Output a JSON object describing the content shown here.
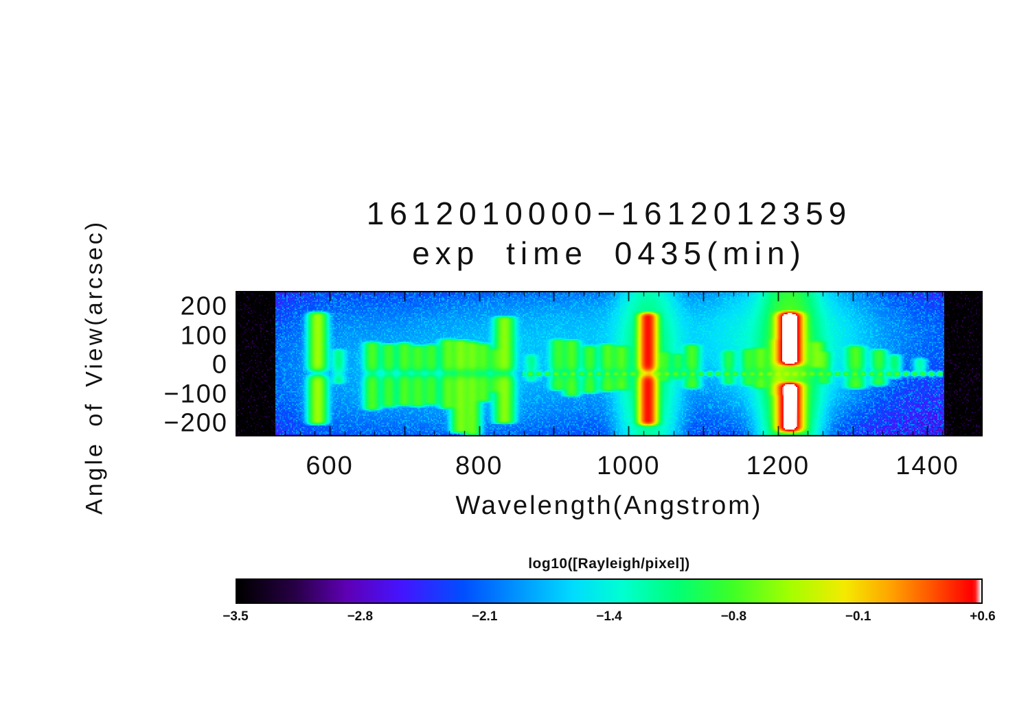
{
  "chart_data": {
    "type": "heatmap",
    "title": "1612010000−1612012359",
    "subtitle": "exp time 0435(min)",
    "xlabel": "Wavelength(Angstrom)",
    "ylabel": "Angle of View(arcsec)",
    "value_label": "log10([Rayleigh/pixel])",
    "value_range": [
      -3.5,
      0.6
    ],
    "xlim": [
      474,
      1474
    ],
    "ylim": [
      -245,
      255
    ],
    "x_ticks": [
      {
        "value": 600,
        "label": "600"
      },
      {
        "value": 800,
        "label": "800"
      },
      {
        "value": 1000,
        "label": "1000"
      },
      {
        "value": 1200,
        "label": "1200"
      },
      {
        "value": 1400,
        "label": "1400"
      }
    ],
    "y_ticks": [
      {
        "value": 200,
        "label": "200"
      },
      {
        "value": 100,
        "label": "100"
      },
      {
        "value": 0,
        "label": "0"
      },
      {
        "value": -100,
        "label": "−100"
      },
      {
        "value": -200,
        "label": "−200"
      }
    ],
    "x_minor_step": 20,
    "y_minor_step": 20,
    "colorbar_ticks": [
      "−3.5",
      "−2.8",
      "−2.1",
      "−1.4",
      "−0.8",
      "−0.1",
      "+0.6"
    ],
    "grid": false,
    "legend": "colorbar-bottom",
    "data_wl_range": [
      527,
      1423
    ],
    "background_log_range": [
      -3.4,
      -2.0
    ],
    "background_bias": 1.3,
    "notch_y": -28,
    "notch_sigma": 12,
    "colormap": [
      [
        -3.5,
        0,
        0,
        0
      ],
      [
        -3.18,
        40,
        0,
        70
      ],
      [
        -2.9,
        95,
        0,
        180
      ],
      [
        -2.6,
        70,
        20,
        255
      ],
      [
        -2.25,
        0,
        80,
        255
      ],
      [
        -1.95,
        0,
        150,
        255
      ],
      [
        -1.65,
        0,
        220,
        255
      ],
      [
        -1.38,
        0,
        255,
        210
      ],
      [
        -1.08,
        0,
        255,
        120
      ],
      [
        -0.78,
        60,
        255,
        40
      ],
      [
        -0.45,
        165,
        255,
        0
      ],
      [
        -0.15,
        245,
        235,
        0
      ],
      [
        0.1,
        255,
        165,
        0
      ],
      [
        0.33,
        255,
        85,
        0
      ],
      [
        0.55,
        255,
        0,
        0
      ],
      [
        0.57,
        255,
        30,
        30
      ],
      [
        0.6,
        255,
        255,
        255
      ]
    ],
    "horizontal_line": {
      "y": -30,
      "wl_start": 858,
      "wl_end": 1420,
      "sigma_y": 4.5,
      "peak": 0.16
    },
    "diffuse_glow": [
      {
        "wl": 1216,
        "y": -20,
        "sx": 20,
        "sy": 235,
        "amp": 0.22
      },
      {
        "wl": 1216,
        "y": 70,
        "sx": 55,
        "sy": 150,
        "amp": 0.035
      },
      {
        "wl": 1026,
        "y": -15,
        "sx": 22,
        "sy": 210,
        "amp": 0.09
      },
      {
        "wl": 1085,
        "y": 120,
        "sx": 220,
        "sy": 105,
        "amp": 0.011
      },
      {
        "wl": 950,
        "y": -20,
        "sx": 300,
        "sy": 170,
        "amp": 0.007
      },
      {
        "wl": 770,
        "y": -40,
        "sx": 120,
        "sy": 150,
        "amp": 0.007
      },
      {
        "wl": 600,
        "y": 0,
        "sx": 60,
        "sy": 180,
        "amp": 0.004
      }
    ],
    "emission_lines": [
      {
        "wl": 584,
        "sigma": 6.5,
        "peak": 0.32,
        "y_top": 188,
        "y_bot": -210,
        "notch": 0.9,
        "edge": 20
      },
      {
        "wl": 612,
        "sigma": 5,
        "peak": 0.06,
        "y_top": 60,
        "y_bot": -70,
        "notch": 0.5
      },
      {
        "wl": 657,
        "sigma": 6,
        "peak": 0.17,
        "y_top": 85,
        "y_bot": -160,
        "notch": 0.65
      },
      {
        "wl": 679,
        "sigma": 6,
        "peak": 0.15,
        "y_top": 78,
        "y_bot": -150,
        "notch": 0.65
      },
      {
        "wl": 700,
        "sigma": 6,
        "peak": 0.17,
        "y_top": 82,
        "y_bot": -145,
        "notch": 0.65
      },
      {
        "wl": 718,
        "sigma": 6,
        "peak": 0.16,
        "y_top": 72,
        "y_bot": -148,
        "notch": 0.65
      },
      {
        "wl": 736,
        "sigma": 6,
        "peak": 0.15,
        "y_top": 76,
        "y_bot": -142,
        "notch": 0.65
      },
      {
        "wl": 758,
        "sigma": 6,
        "peak": 0.19,
        "y_top": 95,
        "y_bot": -155,
        "notch": 0.6
      },
      {
        "wl": 775,
        "sigma": 6.5,
        "peak": 0.24,
        "y_top": 92,
        "y_bot": -238,
        "notch": 0.55
      },
      {
        "wl": 791,
        "sigma": 6,
        "peak": 0.21,
        "y_top": 86,
        "y_bot": -246,
        "notch": 0.55
      },
      {
        "wl": 806,
        "sigma": 6,
        "peak": 0.17,
        "y_top": 80,
        "y_bot": -132,
        "notch": 0.6
      },
      {
        "wl": 821,
        "sigma": 5,
        "peak": 0.11,
        "y_top": 62,
        "y_bot": -100,
        "notch": 0.6
      },
      {
        "wl": 834,
        "sigma": 7,
        "peak": 0.27,
        "y_top": 172,
        "y_bot": -206,
        "notch": 0.7
      },
      {
        "wl": 870,
        "sigma": 5,
        "peak": 0.05,
        "y_top": 42,
        "y_bot": -62,
        "notch": 0.4
      },
      {
        "wl": 906,
        "sigma": 6,
        "peak": 0.14,
        "y_top": 95,
        "y_bot": -92,
        "notch": 0.6
      },
      {
        "wl": 924,
        "sigma": 6,
        "peak": 0.17,
        "y_top": 92,
        "y_bot": -112,
        "notch": 0.6
      },
      {
        "wl": 948,
        "sigma": 6,
        "peak": 0.15,
        "y_top": 72,
        "y_bot": -102,
        "notch": 0.6
      },
      {
        "wl": 972,
        "sigma": 6,
        "peak": 0.17,
        "y_top": 78,
        "y_bot": -96,
        "notch": 0.6
      },
      {
        "wl": 990,
        "sigma": 6,
        "peak": 0.16,
        "y_top": 72,
        "y_bot": -92,
        "notch": 0.6
      },
      {
        "wl": 1026,
        "sigma": 6,
        "peak": 3.2,
        "y_top": 186,
        "y_bot": -212,
        "notch": 0.78,
        "edge": 22
      },
      {
        "wl": 1048,
        "sigma": 5,
        "peak": 0.1,
        "y_top": 52,
        "y_bot": -62,
        "notch": 0.5
      },
      {
        "wl": 1066,
        "sigma": 5,
        "peak": 0.09,
        "y_top": 46,
        "y_bot": -56,
        "notch": 0.5
      },
      {
        "wl": 1085,
        "sigma": 6,
        "peak": 0.16,
        "y_top": 76,
        "y_bot": -86,
        "notch": 0.6
      },
      {
        "wl": 1134,
        "sigma": 5,
        "peak": 0.1,
        "y_top": 56,
        "y_bot": -72,
        "notch": 0.5
      },
      {
        "wl": 1160,
        "sigma": 5,
        "peak": 0.12,
        "y_top": 62,
        "y_bot": -76,
        "notch": 0.5
      },
      {
        "wl": 1176,
        "sigma": 6,
        "peak": 0.15,
        "y_top": 66,
        "y_bot": -86,
        "notch": 0.6
      },
      {
        "wl": 1200,
        "sigma": 6,
        "peak": 0.23,
        "y_top": 96,
        "y_bot": -112,
        "notch": 0.6
      },
      {
        "wl": 1216,
        "sigma": 8,
        "peak": 8.0,
        "y_top": 190,
        "y_bot": -8,
        "notch": 0,
        "edge": 26
      },
      {
        "wl": 1216,
        "sigma": 8,
        "peak": 7.0,
        "y_top": -52,
        "y_bot": -236,
        "notch": 0,
        "edge": 26
      },
      {
        "wl": 1252,
        "sigma": 6,
        "peak": 0.18,
        "y_top": 88,
        "y_bot": -16,
        "notch": 0
      },
      {
        "wl": 1262,
        "sigma": 5,
        "peak": 0.11,
        "y_top": 54,
        "y_bot": -70,
        "notch": 0.5
      },
      {
        "wl": 1304,
        "sigma": 7,
        "peak": 0.17,
        "y_top": 72,
        "y_bot": -86,
        "notch": 0.6
      },
      {
        "wl": 1335,
        "sigma": 6,
        "peak": 0.14,
        "y_top": 60,
        "y_bot": -76,
        "notch": 0.6
      },
      {
        "wl": 1356,
        "sigma": 5,
        "peak": 0.08,
        "y_top": 42,
        "y_bot": -52,
        "notch": 0.4
      },
      {
        "wl": 1390,
        "sigma": 5,
        "peak": 0.05,
        "y_top": 30,
        "y_bot": -42,
        "notch": 0.4
      }
    ]
  }
}
